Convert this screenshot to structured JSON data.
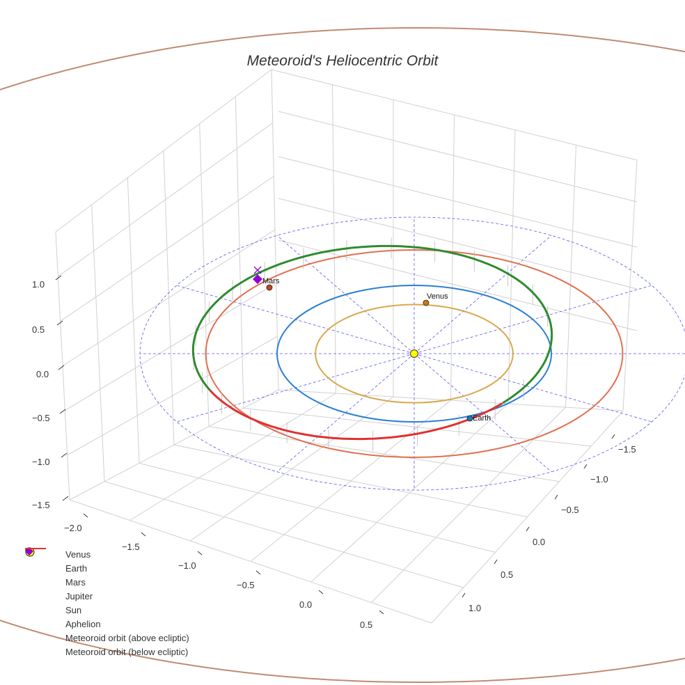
{
  "chart_data": {
    "type": "scatter",
    "title": "Meteoroid's Heliocentric Orbit",
    "x_ticks": [
      "−2.0",
      "−1.5",
      "−1.0",
      "−0.5",
      "0.0",
      "0.5"
    ],
    "y_ticks": [
      "−1.5",
      "−1.0",
      "−0.5",
      "0.0",
      "0.5",
      "1.0"
    ],
    "z_ticks": [
      "1.0",
      "0.5",
      "0.0",
      "−0.5",
      "−1.0",
      "−1.5"
    ],
    "planets": [
      {
        "name": "Venus",
        "orbit_au": 0.72,
        "color": "#c77c12",
        "orbit_color": "#d9a84e",
        "label": "Venus"
      },
      {
        "name": "Earth",
        "orbit_au": 1.0,
        "color": "#1f77b4",
        "orbit_color": "#2a7fd4",
        "label": "Earth"
      },
      {
        "name": "Mars",
        "orbit_au": 1.52,
        "color": "#c8441a",
        "orbit_color": "#e07050",
        "label": "Mars"
      },
      {
        "name": "Jupiter",
        "orbit_au": 5.2,
        "color": "#a0522d",
        "orbit_color": "#c08a70"
      }
    ],
    "reference_ring_au": 2.0,
    "legend": [
      {
        "label": "Venus",
        "marker": "circle",
        "color": "#c77c12"
      },
      {
        "label": "Earth",
        "marker": "circle",
        "color": "#1f77b4"
      },
      {
        "label": "Mars",
        "marker": "circle",
        "color": "#c8441a"
      },
      {
        "label": "Jupiter",
        "marker": "circle",
        "color": "#a0522d"
      },
      {
        "label": "Sun",
        "marker": "big-circle",
        "color": "#ffff00"
      },
      {
        "label": "Aphelion",
        "marker": "diamond",
        "color": "#9400d3"
      },
      {
        "label": "Meteoroid orbit (above ecliptic)",
        "marker": "line",
        "color": "#2e8b2e"
      },
      {
        "label": "Meteoroid orbit (below ecliptic)",
        "marker": "line",
        "color": "#e03030"
      }
    ],
    "legend_position": "lower-left"
  }
}
